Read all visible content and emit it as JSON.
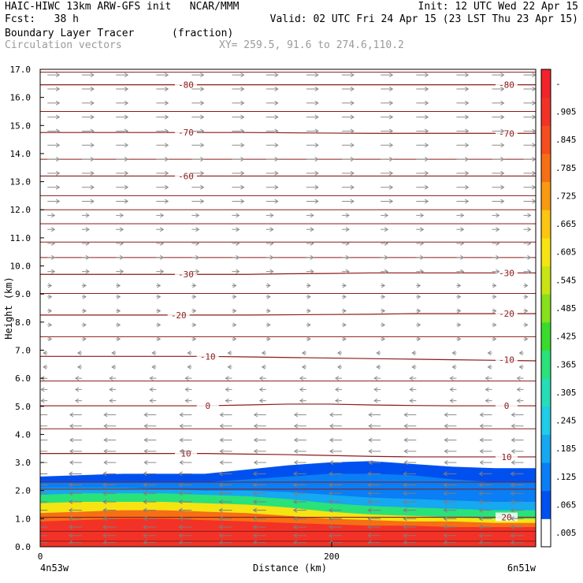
{
  "header": {
    "title_left": "HAIC-HIWC 13km ARW-GFS init   NCAR/MMM",
    "init": "Init: 12 UTC Wed 22 Apr 15",
    "fcst": "Fcst:   38 h",
    "valid": "Valid: 02 UTC Fri 24 Apr 15 (23 LST Thu 23 Apr 15)",
    "field": "Boundary Layer Tracer",
    "field_units": "(fraction)",
    "vectors": "Circulation vectors",
    "xy": "XY= 259.5, 91.6 to 274.6,110.2"
  },
  "colors": {
    "contour": "#8b1a1a",
    "vector": "#8c8c8c",
    "scale": [
      "#ffffff",
      "#0050f0",
      "#0a7ef5",
      "#16a8f0",
      "#20cce6",
      "#26ddb8",
      "#29e27a",
      "#39dc2b",
      "#86e01b",
      "#c8e412",
      "#f5e411",
      "#fbc512",
      "#fa9a12",
      "#f66f15",
      "#f44d1e",
      "#f33227",
      "#f2232b"
    ]
  },
  "chart_data": {
    "type": "heatmap",
    "xlabel": "Distance (km)",
    "ylabel": "Height (km)",
    "xlim": [
      0,
      340
    ],
    "ylim": [
      0,
      17
    ],
    "x_ticks": [
      "0",
      "200"
    ],
    "y_ticks": [
      "0.0",
      "1.0",
      "2.0",
      "3.0",
      "4.0",
      "5.0",
      "6.0",
      "7.0",
      "8.0",
      "9.0",
      "10.0",
      "11.0",
      "12.0",
      "13.0",
      "14.0",
      "15.0",
      "16.0",
      "17.0"
    ],
    "left_endpoint": "4n53w",
    "right_endpoint": "6n51w",
    "colorbar_ticks": [
      ".005",
      ".065",
      ".125",
      ".185",
      ".245",
      ".305",
      ".365",
      ".425",
      ".485",
      ".545",
      ".605",
      ".665",
      ".725",
      ".785",
      ".845",
      ".905",
      "-"
    ],
    "tracer_layers": [
      {
        "fraction": 0.93,
        "top_km": [
          0.9,
          0.95,
          1.0,
          1.0,
          0.95,
          0.9,
          0.85,
          0.8,
          0.75,
          0.75,
          0.7,
          0.7,
          0.7
        ]
      },
      {
        "fraction": 0.8,
        "top_km": [
          1.2,
          1.25,
          1.3,
          1.3,
          1.25,
          1.2,
          1.1,
          1.0,
          0.95,
          0.9,
          0.9,
          0.85,
          0.85
        ]
      },
      {
        "fraction": 0.6,
        "top_km": [
          1.55,
          1.6,
          1.6,
          1.6,
          1.55,
          1.5,
          1.4,
          1.25,
          1.15,
          1.1,
          1.05,
          1.0,
          1.0
        ]
      },
      {
        "fraction": 0.4,
        "top_km": [
          1.85,
          1.9,
          1.9,
          1.9,
          1.85,
          1.8,
          1.7,
          1.55,
          1.45,
          1.4,
          1.35,
          1.3,
          1.3
        ]
      },
      {
        "fraction": 0.2,
        "top_km": [
          2.1,
          2.1,
          2.1,
          2.05,
          2.0,
          2.0,
          1.95,
          1.85,
          1.75,
          1.7,
          1.65,
          1.6,
          1.6
        ]
      },
      {
        "fraction": 0.12,
        "top_km": [
          2.3,
          2.3,
          2.3,
          2.3,
          2.3,
          2.4,
          2.5,
          2.6,
          2.6,
          2.55,
          2.4,
          2.3,
          2.3
        ]
      },
      {
        "fraction": 0.05,
        "top_km": [
          2.5,
          2.55,
          2.6,
          2.6,
          2.6,
          2.75,
          2.9,
          3.0,
          3.05,
          2.95,
          2.85,
          2.8,
          2.8
        ]
      }
    ],
    "tracer_layer_x_km": [
      0,
      28,
      57,
      85,
      113,
      142,
      170,
      198,
      227,
      255,
      283,
      312,
      340
    ],
    "temperature_contours": [
      {
        "label": "20",
        "heights_km": [
          1.05,
          1.05,
          1.05,
          1.05,
          1.05,
          1.05,
          1.05,
          1.05,
          1.05,
          1.05,
          1.05,
          1.05,
          1.05
        ],
        "label_at": [
          [
            320,
            1.05
          ]
        ]
      },
      {
        "label": "10",
        "heights_km": [
          3.32,
          3.32,
          3.32,
          3.32,
          3.32,
          3.3,
          3.28,
          3.25,
          3.22,
          3.2,
          3.2,
          3.2,
          3.2
        ],
        "label_at": [
          [
            100,
            3.32
          ],
          [
            320,
            3.2
          ]
        ]
      },
      {
        "label": "0",
        "heights_km": [
          5.02,
          5.02,
          5.02,
          5.02,
          5.02,
          5.05,
          5.08,
          5.08,
          5.05,
          5.03,
          5.02,
          5.02,
          5.02
        ],
        "label_at": [
          [
            115,
            5.02
          ],
          [
            320,
            5.02
          ]
        ]
      },
      {
        "label": "-10",
        "heights_km": [
          6.78,
          6.78,
          6.78,
          6.78,
          6.78,
          6.76,
          6.74,
          6.72,
          6.7,
          6.68,
          6.66,
          6.64,
          6.62
        ],
        "label_at": [
          [
            115,
            6.78
          ],
          [
            320,
            6.66
          ]
        ]
      },
      {
        "label": "-20",
        "heights_km": [
          8.25,
          8.25,
          8.25,
          8.25,
          8.25,
          8.25,
          8.26,
          8.27,
          8.28,
          8.3,
          8.3,
          8.3,
          8.3
        ],
        "label_at": [
          [
            95,
            8.25
          ],
          [
            320,
            8.3
          ]
        ]
      },
      {
        "label": "-30",
        "heights_km": [
          9.7,
          9.7,
          9.7,
          9.7,
          9.7,
          9.7,
          9.72,
          9.73,
          9.75,
          9.75,
          9.75,
          9.75,
          9.75
        ],
        "label_at": [
          [
            100,
            9.7
          ],
          [
            320,
            9.75
          ]
        ]
      },
      {
        "label": "-60",
        "heights_km": [
          13.2,
          13.2,
          13.2,
          13.2,
          13.2,
          13.2,
          13.2,
          13.2,
          13.2,
          13.2,
          13.2,
          13.2,
          13.2
        ],
        "label_at": [
          [
            100,
            13.2
          ]
        ]
      },
      {
        "label": "-70",
        "heights_km": [
          14.75,
          14.75,
          14.75,
          14.75,
          14.75,
          14.75,
          14.74,
          14.73,
          14.72,
          14.72,
          14.72,
          14.72,
          14.72
        ],
        "label_at": [
          [
            100,
            14.75
          ],
          [
            320,
            14.72
          ]
        ]
      },
      {
        "label": "-80",
        "heights_km": [
          16.45,
          16.45,
          16.45,
          16.45,
          16.45,
          16.45,
          16.45,
          16.45,
          16.45,
          16.45,
          16.45,
          16.45,
          16.45
        ],
        "label_at": [
          [
            100,
            16.45
          ],
          [
            320,
            16.45
          ]
        ]
      }
    ],
    "theta_contour_heights_km": [
      0.2,
      0.55,
      2.05,
      2.3,
      4.2,
      5.9,
      7.48,
      9.02,
      10.3,
      10.85,
      11.5,
      12.0,
      12.5,
      13.8,
      15.5,
      16.9
    ],
    "vector_levels_km": [
      0.15,
      0.4,
      0.7,
      1.0,
      1.3,
      1.6,
      1.9,
      2.2,
      2.6,
      3.0,
      3.4,
      3.8,
      4.3,
      4.7,
      5.2,
      5.6,
      6.0,
      6.4,
      6.9,
      7.4,
      7.9,
      8.4,
      8.9,
      9.3,
      9.8,
      10.3,
      10.8,
      11.3,
      11.8,
      12.3,
      12.8,
      13.3,
      13.8,
      14.3,
      14.8,
      15.3,
      15.8,
      16.3,
      16.8
    ],
    "vector_x_km": [
      5,
      27,
      52,
      78,
      104,
      130,
      155,
      181,
      207,
      232,
      258,
      284,
      310,
      330
    ]
  }
}
